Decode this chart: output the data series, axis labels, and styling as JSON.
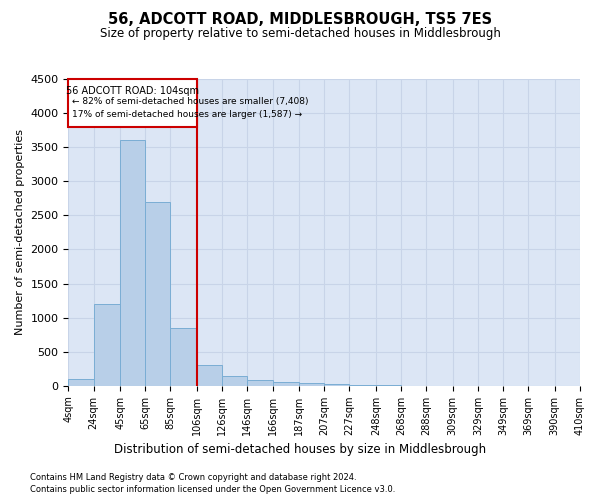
{
  "title": "56, ADCOTT ROAD, MIDDLESBROUGH, TS5 7ES",
  "subtitle": "Size of property relative to semi-detached houses in Middlesbrough",
  "xlabel": "Distribution of semi-detached houses by size in Middlesbrough",
  "ylabel": "Number of semi-detached properties",
  "footnote1": "Contains HM Land Registry data © Crown copyright and database right 2024.",
  "footnote2": "Contains public sector information licensed under the Open Government Licence v3.0.",
  "property_label": "56 ADCOTT ROAD: 104sqm",
  "pct_smaller": 82,
  "n_smaller": 7408,
  "pct_larger": 17,
  "n_larger": 1587,
  "bin_edges": [
    4,
    24,
    45,
    65,
    85,
    106,
    126,
    146,
    166,
    187,
    207,
    227,
    248,
    268,
    288,
    309,
    329,
    349,
    369,
    390,
    410
  ],
  "bin_labels": [
    "4sqm",
    "24sqm",
    "45sqm",
    "65sqm",
    "85sqm",
    "106sqm",
    "126sqm",
    "146sqm",
    "166sqm",
    "187sqm",
    "207sqm",
    "227sqm",
    "248sqm",
    "268sqm",
    "288sqm",
    "309sqm",
    "329sqm",
    "349sqm",
    "369sqm",
    "390sqm",
    "410sqm"
  ],
  "counts": [
    100,
    1200,
    3600,
    2700,
    850,
    300,
    150,
    80,
    60,
    40,
    20,
    10,
    5,
    3,
    2,
    1,
    0,
    0,
    0,
    0
  ],
  "bar_color": "#b8cfe8",
  "bar_edge_color": "#7aadd4",
  "vline_color": "#cc0000",
  "vline_x": 106,
  "box_color": "#cc0000",
  "ylim": [
    0,
    4500
  ],
  "yticks": [
    0,
    500,
    1000,
    1500,
    2000,
    2500,
    3000,
    3500,
    4000,
    4500
  ],
  "grid_color": "#c8d4e8",
  "bg_color": "#dce6f5"
}
